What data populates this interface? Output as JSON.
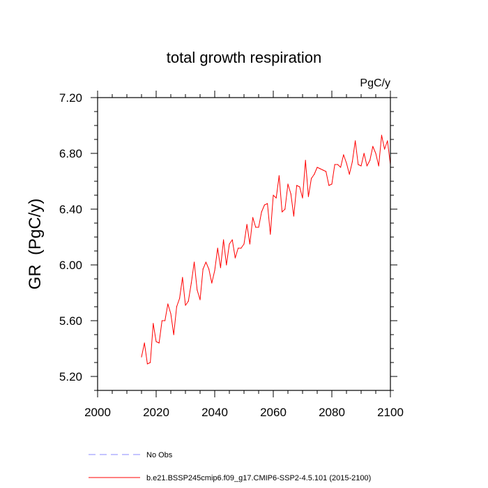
{
  "chart_data": {
    "type": "line",
    "title": "total growth respiration",
    "units_label": "PgC/y",
    "ylabel": "GR  (PgC/y)",
    "xlabel": "",
    "xlim": [
      2000,
      2100
    ],
    "ylim": [
      5.1,
      7.2
    ],
    "x_ticks": [
      2000,
      2020,
      2040,
      2060,
      2080,
      2100
    ],
    "x_tick_labels": [
      "2000",
      "2020",
      "2040",
      "2060",
      "2080",
      "2100"
    ],
    "y_ticks": [
      5.2,
      5.6,
      6.0,
      6.4,
      6.8,
      7.2
    ],
    "y_tick_labels": [
      "5.20",
      "5.60",
      "6.00",
      "6.40",
      "6.80",
      "7.20"
    ],
    "grid": false,
    "legend": {
      "placement": "bottom-left",
      "entries": [
        {
          "label": "No Obs",
          "color": "#8888ff",
          "style": "dashed"
        },
        {
          "label": "b.e21.BSSP245cmip6.f09_g17.CMIP6-SSP2-4.5.101 (2015-2100)",
          "color": "#ff0000",
          "style": "solid"
        }
      ]
    },
    "series": [
      {
        "name": "b.e21.BSSP245cmip6.f09_g17.CMIP6-SSP2-4.5.101 (2015-2100)",
        "color": "#ff0000",
        "x": [
          2015,
          2016,
          2017,
          2018,
          2019,
          2020,
          2021,
          2022,
          2023,
          2024,
          2025,
          2026,
          2027,
          2028,
          2029,
          2030,
          2031,
          2032,
          2033,
          2034,
          2035,
          2036,
          2037,
          2038,
          2039,
          2040,
          2041,
          2042,
          2043,
          2044,
          2045,
          2046,
          2047,
          2048,
          2049,
          2050,
          2051,
          2052,
          2053,
          2054,
          2055,
          2056,
          2057,
          2058,
          2059,
          2060,
          2061,
          2062,
          2063,
          2064,
          2065,
          2066,
          2067,
          2068,
          2069,
          2070,
          2071,
          2072,
          2073,
          2074,
          2075,
          2076,
          2077,
          2078,
          2079,
          2080,
          2081,
          2082,
          2083,
          2084,
          2085,
          2086,
          2087,
          2088,
          2089,
          2090,
          2091,
          2092,
          2093,
          2094,
          2095,
          2096,
          2097,
          2098,
          2099,
          2100
        ],
        "values": [
          5.34,
          5.44,
          5.29,
          5.3,
          5.58,
          5.45,
          5.44,
          5.6,
          5.6,
          5.72,
          5.65,
          5.5,
          5.7,
          5.76,
          5.91,
          5.71,
          5.74,
          5.87,
          6.02,
          5.82,
          5.75,
          5.97,
          6.02,
          5.97,
          5.87,
          5.96,
          6.12,
          5.98,
          6.18,
          6.0,
          6.15,
          6.18,
          6.05,
          6.12,
          6.12,
          6.15,
          6.29,
          6.15,
          6.34,
          6.27,
          6.27,
          6.38,
          6.43,
          6.44,
          6.22,
          6.5,
          6.48,
          6.64,
          6.38,
          6.4,
          6.58,
          6.51,
          6.35,
          6.57,
          6.56,
          6.48,
          6.75,
          6.49,
          6.62,
          6.65,
          6.7,
          6.69,
          6.68,
          6.67,
          6.57,
          6.58,
          6.72,
          6.72,
          6.7,
          6.79,
          6.73,
          6.65,
          6.74,
          6.89,
          6.72,
          6.71,
          6.8,
          6.71,
          6.75,
          6.85,
          6.8,
          6.71,
          6.93,
          6.83,
          6.89,
          6.72
        ]
      }
    ]
  }
}
